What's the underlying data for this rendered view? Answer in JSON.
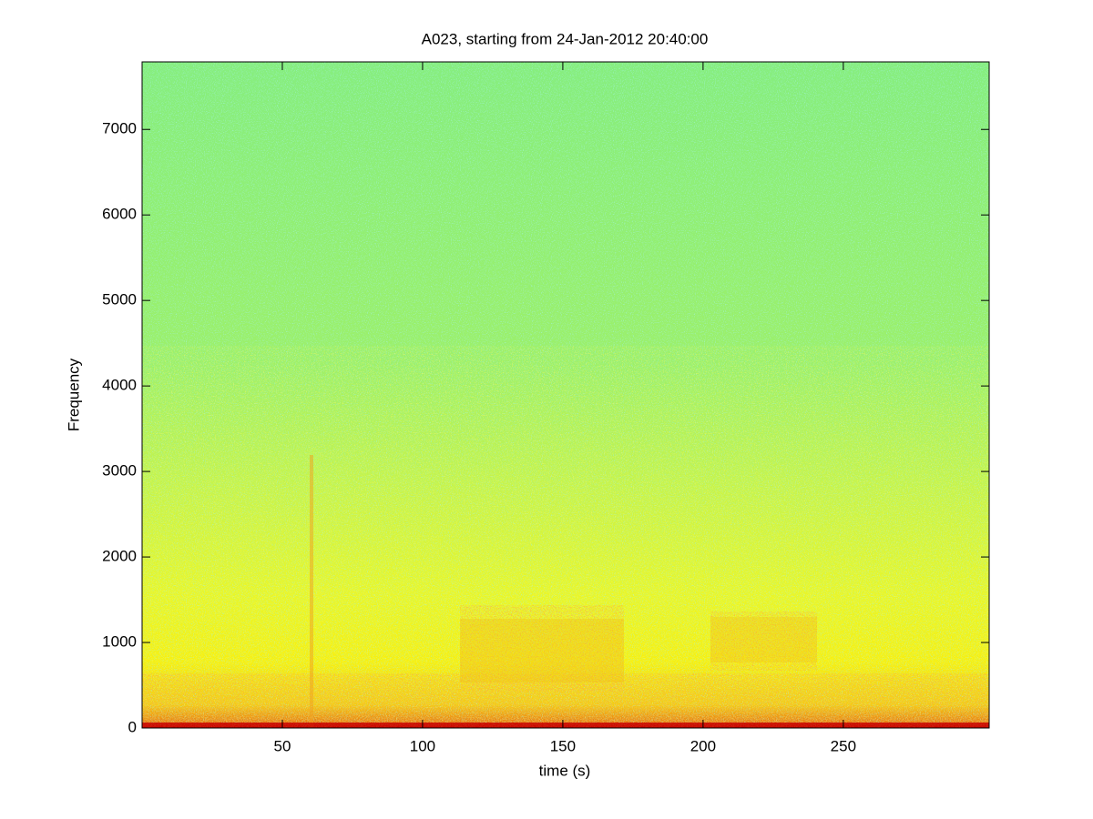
{
  "chart_data": {
    "type": "spectrogram",
    "title": "A023, starting from 24-Jan-2012 20:40:00",
    "x_label": "time (s)",
    "y_label": "Frequency",
    "xlim": [
      0,
      302
    ],
    "xticks": [
      50,
      100,
      150,
      200,
      250
    ],
    "ylim": [
      0,
      7790
    ],
    "yticks": [
      0,
      1000,
      2000,
      3000,
      4000,
      5000,
      6000,
      7000
    ],
    "box": true
  }
}
